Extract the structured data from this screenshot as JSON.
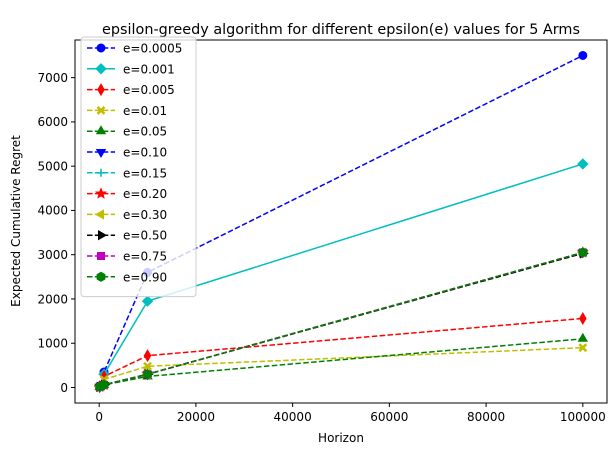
{
  "chart_data": {
    "type": "line",
    "title": "epsilon-greedy algorithm for different epsilon(e) values for 5 Arms",
    "xlabel": "Horizon",
    "ylabel": "Expected Cumulative Regret",
    "x": [
      100,
      1000,
      10000,
      100000
    ],
    "xlim": [
      -5000,
      105000
    ],
    "ylim": [
      -350,
      7850
    ],
    "xticks": [
      0,
      20000,
      40000,
      60000,
      80000,
      100000
    ],
    "yticks": [
      0,
      1000,
      2000,
      3000,
      4000,
      5000,
      6000,
      7000
    ],
    "grid": false,
    "legend_position": "upper-left",
    "series": [
      {
        "name": "e=0.0005",
        "values": [
          30,
          350,
          2600,
          7500
        ],
        "color": "#0000ff",
        "dash": "dashed",
        "marker": "circle"
      },
      {
        "name": "e=0.001",
        "values": [
          30,
          300,
          1950,
          5050
        ],
        "color": "#00bfbf",
        "dash": "solid",
        "marker": "diamond"
      },
      {
        "name": "e=0.005",
        "values": [
          20,
          250,
          720,
          1560
        ],
        "color": "#ff0000",
        "dash": "dashed",
        "marker": "thin_diamond"
      },
      {
        "name": "e=0.01",
        "values": [
          20,
          180,
          480,
          900
        ],
        "color": "#bfbf00",
        "dash": "dashed",
        "marker": "x"
      },
      {
        "name": "e=0.05",
        "values": [
          15,
          60,
          250,
          1100
        ],
        "color": "#008000",
        "dash": "dashed",
        "marker": "triangle_up"
      },
      {
        "name": "e=0.10",
        "values": [
          15,
          60,
          300,
          3050
        ],
        "color": "#0000ff",
        "dash": "dashed",
        "marker": "triangle_down"
      },
      {
        "name": "e=0.15",
        "values": [
          15,
          60,
          300,
          3050
        ],
        "color": "#00bfbf",
        "dash": "dashed",
        "marker": "plus"
      },
      {
        "name": "e=0.20",
        "values": [
          15,
          60,
          300,
          3050
        ],
        "color": "#ff0000",
        "dash": "dashed",
        "marker": "star"
      },
      {
        "name": "e=0.30",
        "values": [
          15,
          60,
          300,
          3050
        ],
        "color": "#bfbf00",
        "dash": "dashed",
        "marker": "triangle_left"
      },
      {
        "name": "e=0.50",
        "values": [
          15,
          60,
          300,
          3030
        ],
        "color": "#000000",
        "dash": "dashed",
        "marker": "triangle_right"
      },
      {
        "name": "e=0.75",
        "values": [
          15,
          60,
          300,
          3050
        ],
        "color": "#bf00bf",
        "dash": "dashed",
        "marker": "square"
      },
      {
        "name": "e=0.90",
        "values": [
          15,
          60,
          300,
          3050
        ],
        "color": "#008000",
        "dash": "dashed",
        "marker": "hexagon"
      }
    ]
  }
}
